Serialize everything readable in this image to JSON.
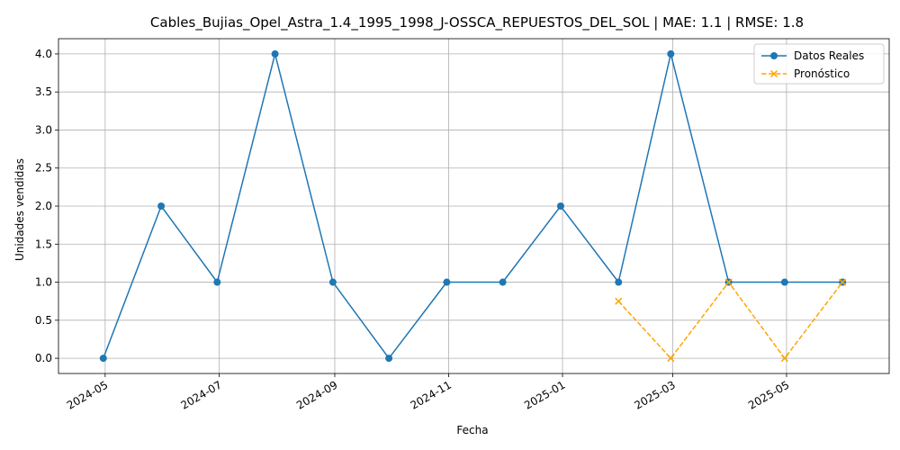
{
  "chart_data": {
    "type": "line",
    "title": "Cables_Bujias_Opel_Astra_1.4_1995_1998_J-OSSCA_REPUESTOS_DEL_SOL | MAE: 1.1 | RMSE: 1.8",
    "xlabel": "Fecha",
    "ylabel": "Unidades vendidas",
    "x_axis_type": "date",
    "xlim": [
      "2024-04-06",
      "2025-06-25"
    ],
    "ylim": [
      -0.2,
      4.2
    ],
    "x_ticks": [
      "2024-05",
      "2024-07",
      "2024-09",
      "2024-11",
      "2025-01",
      "2025-03",
      "2025-05"
    ],
    "y_ticks": [
      "0.0",
      "0.5",
      "1.0",
      "1.5",
      "2.0",
      "2.5",
      "3.0",
      "3.5",
      "4.0"
    ],
    "grid": true,
    "legend_position": "top-right",
    "series": [
      {
        "name": "Datos Reales",
        "color": "#1f77b4",
        "line_style": "solid",
        "marker": "circle",
        "points": [
          {
            "x": "2024-04-30",
            "y": 0
          },
          {
            "x": "2024-05-31",
            "y": 2
          },
          {
            "x": "2024-06-30",
            "y": 1
          },
          {
            "x": "2024-07-31",
            "y": 4
          },
          {
            "x": "2024-08-31",
            "y": 1
          },
          {
            "x": "2024-09-30",
            "y": 0
          },
          {
            "x": "2024-10-31",
            "y": 1
          },
          {
            "x": "2024-11-30",
            "y": 1
          },
          {
            "x": "2024-12-31",
            "y": 2
          },
          {
            "x": "2025-01-31",
            "y": 1
          },
          {
            "x": "2025-02-28",
            "y": 4
          },
          {
            "x": "2025-03-31",
            "y": 1
          },
          {
            "x": "2025-04-30",
            "y": 1
          },
          {
            "x": "2025-05-31",
            "y": 1
          }
        ]
      },
      {
        "name": "Pronóstico",
        "color": "#ffa500",
        "line_style": "dashed",
        "marker": "x",
        "points": [
          {
            "x": "2025-01-31",
            "y": 0.75
          },
          {
            "x": "2025-02-28",
            "y": 0
          },
          {
            "x": "2025-03-31",
            "y": 1
          },
          {
            "x": "2025-04-30",
            "y": 0
          },
          {
            "x": "2025-05-31",
            "y": 1
          }
        ]
      }
    ]
  }
}
